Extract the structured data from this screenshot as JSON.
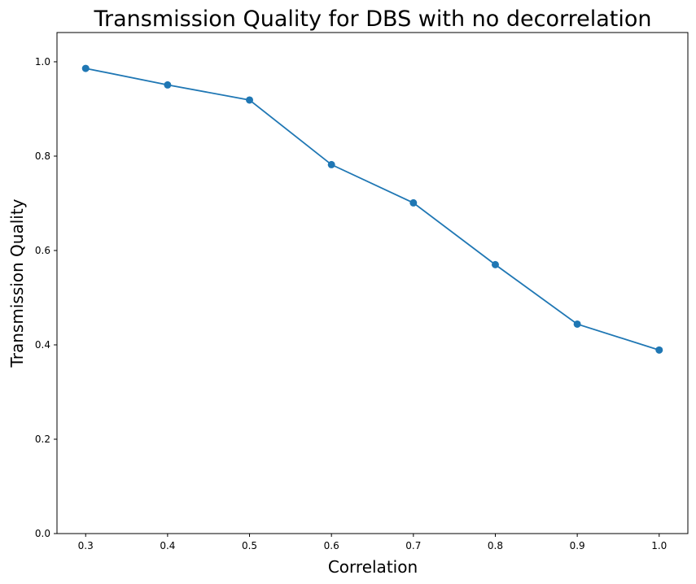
{
  "chart_data": {
    "type": "line",
    "title": "Transmission Quality for DBS with no decorrelation",
    "xlabel": "Correlation",
    "ylabel": "Transmission Quality",
    "x": [
      0.3,
      0.4,
      0.5,
      0.6,
      0.7,
      0.8,
      0.9,
      1.0
    ],
    "series": [
      {
        "values": [
          0.986,
          0.951,
          0.919,
          0.782,
          0.701,
          0.57,
          0.444,
          0.389
        ],
        "color": "#1f77b4",
        "marker": "circle"
      }
    ],
    "xlim": [
      0.265,
      1.035
    ],
    "ylim": [
      0.0,
      1.062
    ],
    "xticks": [
      "0.3",
      "0.4",
      "0.5",
      "0.6",
      "0.7",
      "0.8",
      "0.9",
      "1.0"
    ],
    "yticks": [
      "0.0",
      "0.2",
      "0.4",
      "0.6",
      "0.8",
      "1.0"
    ],
    "grid": false,
    "legend": "none"
  }
}
